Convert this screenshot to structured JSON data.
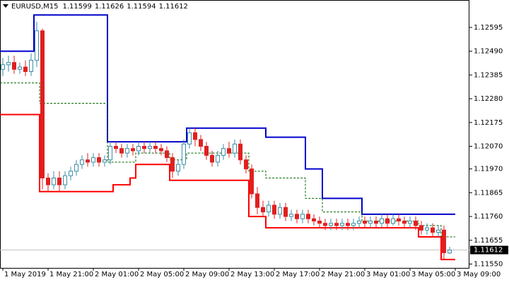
{
  "chart_data": {
    "type": "candlestick",
    "symbol": "EURUSD,M15",
    "bull_color": "#3b8ea5",
    "bear_color": "#e02020",
    "open": [
      1.1241,
      1.1243,
      1.1244,
      1.1241,
      1.1242,
      1.124,
      1.1245,
      1.1258,
      1.1193,
      1.119,
      1.1193,
      1.119,
      1.1194,
      1.1196,
      1.1199,
      1.1201,
      1.12,
      1.1202,
      1.12,
      1.1201,
      1.1207,
      1.1206,
      1.1204,
      1.1206,
      1.1205,
      1.1207,
      1.1206,
      1.1207,
      1.1206,
      1.1205,
      1.1202,
      1.1196,
      1.1199,
      1.1208,
      1.1213,
      1.121,
      1.1207,
      1.1203,
      1.12,
      1.1203,
      1.1206,
      1.1204,
      1.1208,
      1.1201,
      1.1197,
      1.1186,
      1.118,
      1.1178,
      1.1181,
      1.1177,
      1.118,
      1.1176,
      1.1177,
      1.1175,
      1.1177,
      1.1175,
      1.1174,
      1.1173,
      1.1172,
      1.1173,
      1.1172,
      1.1173,
      1.1172,
      1.1173,
      1.1174,
      1.1173,
      1.1174,
      1.1173,
      1.1175,
      1.1173,
      1.1175,
      1.1174,
      1.1173,
      1.1174,
      1.1172,
      1.117,
      1.1171,
      1.1169,
      1.117,
      1.11599
    ],
    "high": [
      1.1246,
      1.1247,
      1.1247,
      1.1244,
      1.1245,
      1.1248,
      1.1262,
      1.1259,
      1.1195,
      1.1196,
      1.1196,
      1.1196,
      1.1198,
      1.1201,
      1.1203,
      1.1204,
      1.1204,
      1.1204,
      1.1203,
      1.1209,
      1.1209,
      1.1208,
      1.1208,
      1.1208,
      1.1209,
      1.1209,
      1.1209,
      1.1209,
      1.1208,
      1.1207,
      1.1204,
      1.1201,
      1.121,
      1.1215,
      1.1215,
      1.1212,
      1.1209,
      1.1205,
      1.1205,
      1.1208,
      1.1209,
      1.121,
      1.121,
      1.1203,
      1.1199,
      1.1189,
      1.1183,
      1.1183,
      1.1183,
      1.1182,
      1.1182,
      1.1179,
      1.1179,
      1.1179,
      1.1179,
      1.1177,
      1.1176,
      1.1175,
      1.1175,
      1.1175,
      1.1175,
      1.1175,
      1.1175,
      1.1176,
      1.1176,
      1.1176,
      1.1176,
      1.1177,
      1.1177,
      1.1177,
      1.1177,
      1.1176,
      1.1176,
      1.1176,
      1.1174,
      1.1173,
      1.1173,
      1.1172,
      1.1172,
      1.11626
    ],
    "low": [
      1.1238,
      1.124,
      1.1239,
      1.1239,
      1.1238,
      1.1238,
      1.1242,
      1.1188,
      1.1187,
      1.1188,
      1.1187,
      1.1188,
      1.1192,
      1.1194,
      1.1197,
      1.1198,
      1.1198,
      1.1198,
      1.1198,
      1.1199,
      1.1204,
      1.1202,
      1.1202,
      1.1203,
      1.1203,
      1.1204,
      1.1204,
      1.1204,
      1.1203,
      1.12,
      1.1193,
      1.1194,
      1.1197,
      1.1206,
      1.1207,
      1.1205,
      1.1201,
      1.1198,
      1.1198,
      1.1201,
      1.1202,
      1.1202,
      1.1199,
      1.1195,
      1.1184,
      1.1177,
      1.1176,
      1.1176,
      1.1175,
      1.1175,
      1.1174,
      1.1174,
      1.1173,
      1.1173,
      1.1173,
      1.1172,
      1.1171,
      1.117,
      1.117,
      1.117,
      1.117,
      1.117,
      1.117,
      1.1171,
      1.1171,
      1.1171,
      1.1171,
      1.1171,
      1.1171,
      1.1172,
      1.1172,
      1.1171,
      1.1171,
      1.117,
      1.1168,
      1.1168,
      1.1167,
      1.1167,
      1.1157,
      1.11594
    ],
    "close": [
      1.1243,
      1.1244,
      1.1241,
      1.1242,
      1.124,
      1.1245,
      1.1258,
      1.1193,
      1.119,
      1.1193,
      1.119,
      1.1194,
      1.1196,
      1.1199,
      1.1201,
      1.12,
      1.1202,
      1.12,
      1.1201,
      1.1207,
      1.1206,
      1.1204,
      1.1206,
      1.1205,
      1.1207,
      1.1206,
      1.1207,
      1.1206,
      1.1205,
      1.1202,
      1.1196,
      1.1199,
      1.1208,
      1.1213,
      1.121,
      1.1207,
      1.1203,
      1.12,
      1.1203,
      1.1206,
      1.1204,
      1.1208,
      1.1201,
      1.1197,
      1.1186,
      1.118,
      1.1178,
      1.1181,
      1.1177,
      1.118,
      1.1176,
      1.1177,
      1.1175,
      1.1177,
      1.1175,
      1.1174,
      1.1173,
      1.1172,
      1.1173,
      1.1172,
      1.1173,
      1.1172,
      1.1173,
      1.1174,
      1.1173,
      1.1174,
      1.1173,
      1.1175,
      1.1173,
      1.1175,
      1.1174,
      1.1173,
      1.1174,
      1.1172,
      1.117,
      1.1171,
      1.1169,
      1.117,
      1.116,
      1.11612
    ],
    "channels": [
      {
        "color": "#0000cc",
        "dashed": false,
        "x": [
          0,
          6,
          19,
          33,
          47,
          54,
          57,
          64
        ],
        "values": [
          1.1249,
          1.1265,
          1.1209,
          1.1215,
          1.1211,
          1.1197,
          1.1184,
          1.1177
        ]
      },
      {
        "color": "#ff0000",
        "dashed": false,
        "x": [
          0,
          7,
          20,
          23,
          24,
          30,
          44,
          47,
          74,
          78
        ],
        "values": [
          1.1221,
          1.1187,
          1.119,
          1.1193,
          1.1199,
          1.1192,
          1.1176,
          1.1171,
          1.1167,
          1.1157
        ]
      },
      {
        "color": "#006400",
        "dashed": true,
        "x": [
          0,
          7,
          19,
          24,
          30,
          33,
          44,
          47,
          54,
          57,
          64,
          74,
          78
        ],
        "values": [
          1.1235,
          1.1226,
          1.12,
          1.1204,
          1.1201,
          1.1204,
          1.1196,
          1.1193,
          1.1184,
          1.1178,
          1.1174,
          1.1172,
          1.1167
        ]
      }
    ],
    "xlim": [
      -0.5,
      82.5
    ],
    "xticks": [
      {
        "value": 0,
        "label": "1 May 2019"
      },
      {
        "value": 8,
        "label": "1 May 21:00"
      },
      {
        "value": 16,
        "label": "2 May 01:00"
      },
      {
        "value": 24,
        "label": "2 May 05:00"
      },
      {
        "value": 32,
        "label": "2 May 09:00"
      },
      {
        "value": 40,
        "label": "2 May 13:00"
      },
      {
        "value": 48,
        "label": "2 May 17:00"
      },
      {
        "value": 56,
        "label": "2 May 21:00"
      },
      {
        "value": 64,
        "label": "3 May 01:00"
      },
      {
        "value": 72,
        "label": "3 May 05:00"
      },
      {
        "value": 80,
        "label": "3 May 09:00"
      }
    ],
    "ylim": [
      1.11533,
      1.12716
    ],
    "yticks": [
      1.12595,
      {
        "value": 1.1249,
        "label": "1.12490"
      },
      1.12385,
      {
        "value": 1.1228,
        "label": "1.12280"
      },
      1.12175,
      {
        "value": 1.1207,
        "label": "1.12070"
      },
      {
        "value": 1.1197,
        "label": "1.11970"
      },
      1.11865,
      {
        "value": 1.1176,
        "label": "1.11760"
      },
      1.11655,
      {
        "value": 1.1155,
        "label": "1.11550"
      }
    ]
  }
}
